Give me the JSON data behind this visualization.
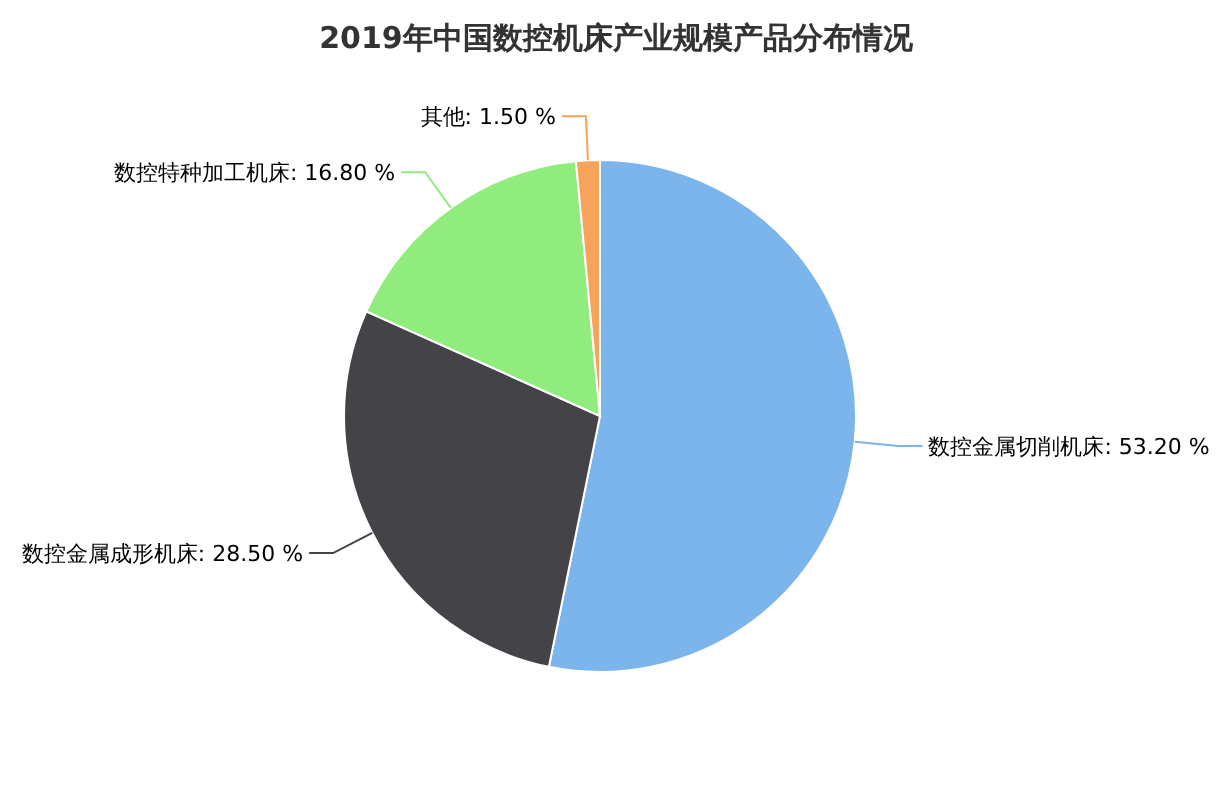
{
  "chart_data": {
    "type": "pie",
    "title": "2019年中国数控机床产业规模产品分布情况",
    "categories": [
      "数控金属切削机床",
      "数控金属成形机床",
      "数控特种加工机床",
      "其他"
    ],
    "values": [
      53.2,
      28.5,
      16.8,
      1.5
    ],
    "colors": [
      "#7cb5ec",
      "#434348",
      "#90ed7d",
      "#f7a35c"
    ],
    "value_labels": [
      "53.20 %",
      "28.50 %",
      "16.80 %",
      "1.50 %"
    ]
  }
}
